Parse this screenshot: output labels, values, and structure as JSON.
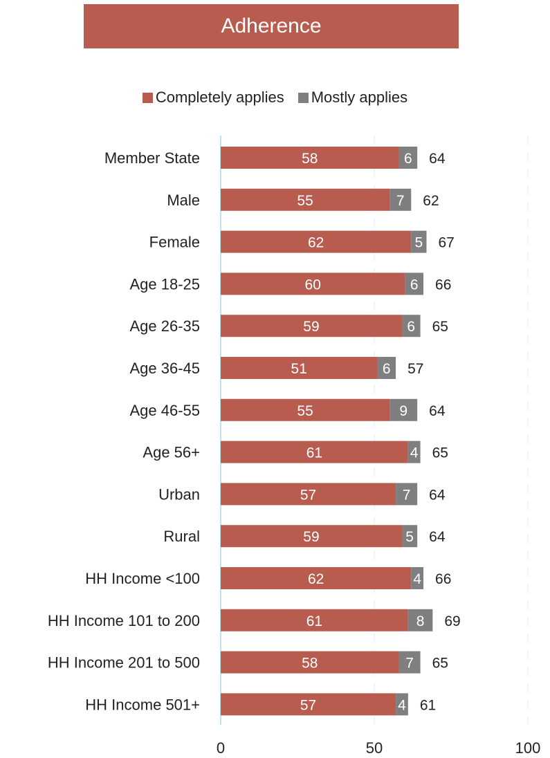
{
  "chart_data": {
    "type": "bar",
    "orientation": "horizontal",
    "stacked": true,
    "title": "Adherence",
    "categories": [
      "Member State",
      "Male",
      "Female",
      "Age 18-25",
      "Age 26-35",
      "Age 36-45",
      "Age 46-55",
      "Age 56+",
      "Urban",
      "Rural",
      "HH Income <100",
      "HH Income 101 to 200",
      "HH Income 201 to 500",
      "HH Income 501+"
    ],
    "series": [
      {
        "name": "Completely applies",
        "color": "#b85c4f",
        "values": [
          58,
          55,
          62,
          60,
          59,
          51,
          55,
          61,
          57,
          59,
          62,
          61,
          58,
          57
        ]
      },
      {
        "name": "Mostly applies",
        "color": "#7f7f7f",
        "values": [
          6,
          7,
          5,
          6,
          6,
          6,
          9,
          4,
          7,
          5,
          4,
          8,
          7,
          4
        ]
      }
    ],
    "totals": [
      64,
      62,
      67,
      66,
      65,
      57,
      64,
      65,
      64,
      64,
      66,
      69,
      65,
      61
    ],
    "xlim": [
      0,
      100
    ],
    "xticks": [
      "0",
      "50",
      "100"
    ],
    "legend_position": "top",
    "grid": true
  }
}
